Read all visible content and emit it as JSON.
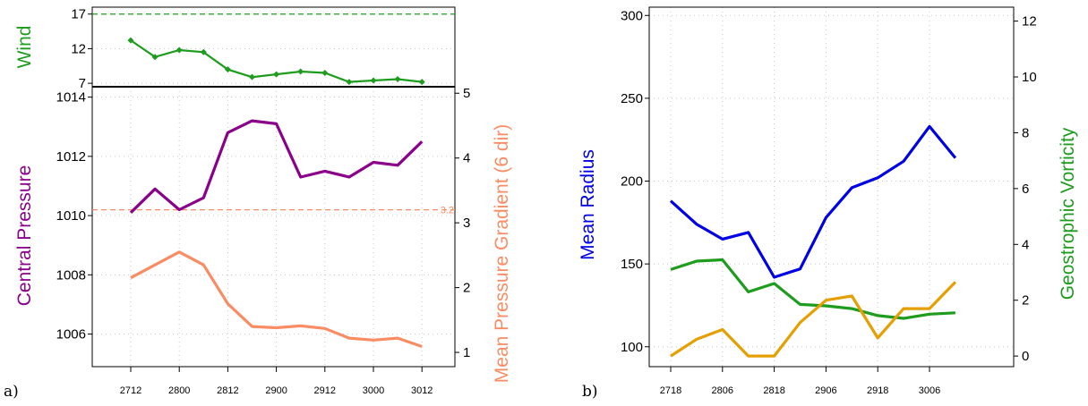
{
  "chart_data": [
    {
      "type": "line",
      "panel_label": "a)",
      "x_ticks": [
        "2712",
        "2800",
        "2812",
        "2900",
        "2912",
        "3000",
        "3012"
      ],
      "top_subplot": {
        "ylabel": "Wind",
        "ylabel_color": "#1e9c1e",
        "yticks": [
          7,
          12,
          17
        ],
        "ylim": [
          6.5,
          18
        ],
        "reference_line": {
          "value": 17,
          "color": "#1e9c1e",
          "style": "dashed"
        },
        "series": [
          {
            "color": "#1e9c1e",
            "marker": "diamond",
            "values": [
              13.2,
              10.8,
              11.8,
              11.5,
              9.0,
              7.9,
              8.3,
              8.7,
              8.5,
              7.2,
              7.4,
              7.6,
              7.2
            ]
          }
        ]
      },
      "bottom_subplot": {
        "ylabel_left": "Central Pressure",
        "ylabel_left_color": "#8b008b",
        "ylabel_right": "Mean Pressure Gradient (6 dir)",
        "ylabel_right_color": "#fa8c64",
        "yticks_left": [
          1006,
          1008,
          1010,
          1012,
          1014
        ],
        "yticks_right": [
          1,
          2,
          3,
          4,
          5
        ],
        "ylim_left": [
          1004.9,
          1014.35
        ],
        "ylim_right": [
          0.78,
          5.1
        ],
        "reference_line": {
          "value": 3.2,
          "label": "3.2",
          "color": "#fa8c64",
          "style": "dashed",
          "axis": "right"
        },
        "series": [
          {
            "axis": "left",
            "color": "#8b008b",
            "values": [
              1010.1,
              1010.9,
              1010.2,
              1010.6,
              1012.8,
              1013.2,
              1013.1,
              1011.3,
              1011.5,
              1011.3,
              1011.8,
              1011.7,
              1012.5
            ]
          },
          {
            "axis": "right",
            "color": "#fa8c64",
            "values": [
              2.15,
              2.35,
              2.55,
              2.35,
              1.75,
              1.4,
              1.38,
              1.41,
              1.37,
              1.22,
              1.19,
              1.22,
              1.09
            ]
          }
        ]
      }
    },
    {
      "type": "line",
      "panel_label": "b)",
      "x_ticks": [
        "2718",
        "2806",
        "2818",
        "2906",
        "2918",
        "3006"
      ],
      "ylabel_left": "Mean Radius",
      "ylabel_left_color": "#0000e6",
      "ylabel_right": "Geostrophic Vorticity",
      "ylabel_right_color": "#1e9c1e",
      "yticks_left": [
        100,
        150,
        200,
        250,
        300
      ],
      "yticks_right": [
        0,
        2,
        4,
        6,
        8,
        10,
        12
      ],
      "ylim_left": [
        88,
        305
      ],
      "ylim_right": [
        -0.38,
        12.5
      ],
      "series": [
        {
          "axis": "left",
          "color": "#0000e6",
          "values": [
            188,
            174,
            165,
            169,
            142,
            147,
            178,
            196,
            202,
            212,
            233,
            214
          ]
        },
        {
          "axis": "right",
          "color": "#1e9c1e",
          "values": [
            3.1,
            3.4,
            3.45,
            2.3,
            2.6,
            1.85,
            1.8,
            1.7,
            1.45,
            1.35,
            1.5,
            1.55
          ]
        },
        {
          "axis": "right",
          "color": "#e69f00",
          "values": [
            0.0,
            0.6,
            0.95,
            0.0,
            0.0,
            1.2,
            2.0,
            2.15,
            0.65,
            1.7,
            1.7,
            2.65
          ]
        }
      ]
    }
  ]
}
